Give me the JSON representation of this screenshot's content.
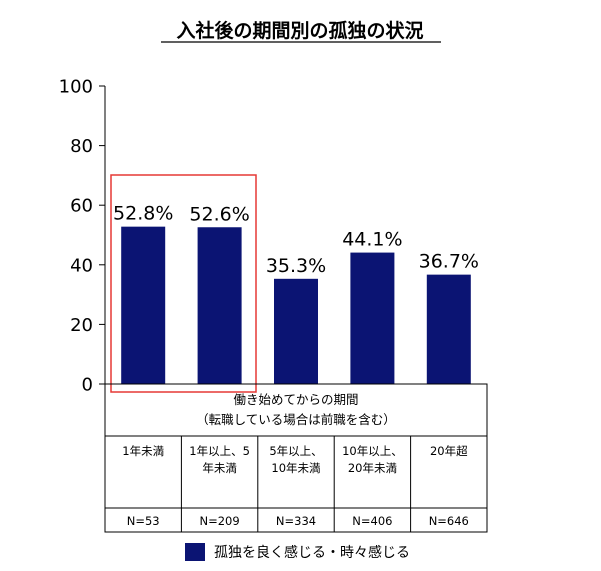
{
  "chart_data": {
    "type": "bar",
    "title": "入社後の期間別の孤独の状況",
    "ylim": [
      0,
      100
    ],
    "yticks": [
      "100",
      "80",
      "60",
      "40",
      "20",
      "0"
    ],
    "categories": [
      "1年未満",
      "1年以上、5年未満",
      "5年以上、10年未満",
      "10年以上、20年未満",
      "20年超"
    ],
    "category_lines": [
      [
        "1年未満"
      ],
      [
        "1年以上、5",
        "年未満"
      ],
      [
        "5年以上、",
        "10年未満"
      ],
      [
        "10年以上、",
        "20年未満"
      ],
      [
        "20年超"
      ]
    ],
    "n_labels": [
      "N=53",
      "N=209",
      "N=334",
      "N=406",
      "N=646"
    ],
    "series": [
      {
        "name": "孤独を良く感じる・時々感じる",
        "values": [
          52.8,
          52.6,
          35.3,
          44.1,
          36.7
        ],
        "labels": [
          "52.8%",
          "52.6%",
          "35.3%",
          "44.1%",
          "36.7%"
        ],
        "color": "#0b1473"
      }
    ],
    "table_header": [
      "働き始めてからの期間",
      "（転職している場合は前職を含む）"
    ],
    "highlight": {
      "categories": [
        0,
        1
      ],
      "color": "#e53935"
    }
  }
}
